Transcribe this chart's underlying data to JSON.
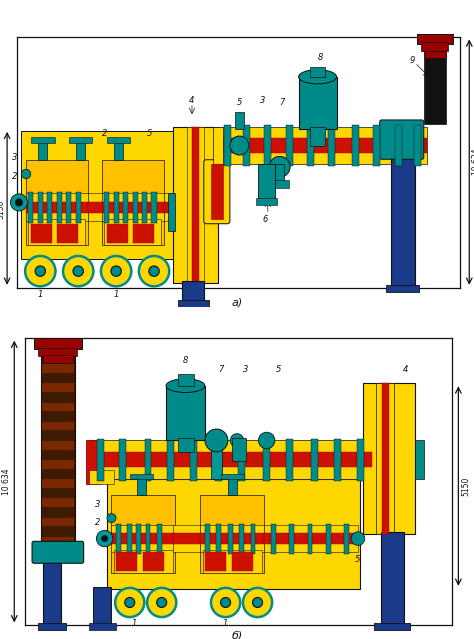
{
  "bg": "#ffffff",
  "title_a": "а)",
  "title_b": "б)",
  "dim_5150": "5150",
  "dim_10634": "10 634",
  "yellow": "#FFD700",
  "yellow2": "#FFC000",
  "red": "#CC1100",
  "dark_red": "#990000",
  "teal": "#008B8B",
  "teal2": "#009999",
  "blue": "#1a3a8a",
  "blue2": "#2255BB",
  "black": "#111111",
  "dark_brown": "#3D1A00",
  "mid_brown": "#7A2800",
  "orange": "#FF6600",
  "gray": "#666666",
  "dark_gray": "#333333"
}
